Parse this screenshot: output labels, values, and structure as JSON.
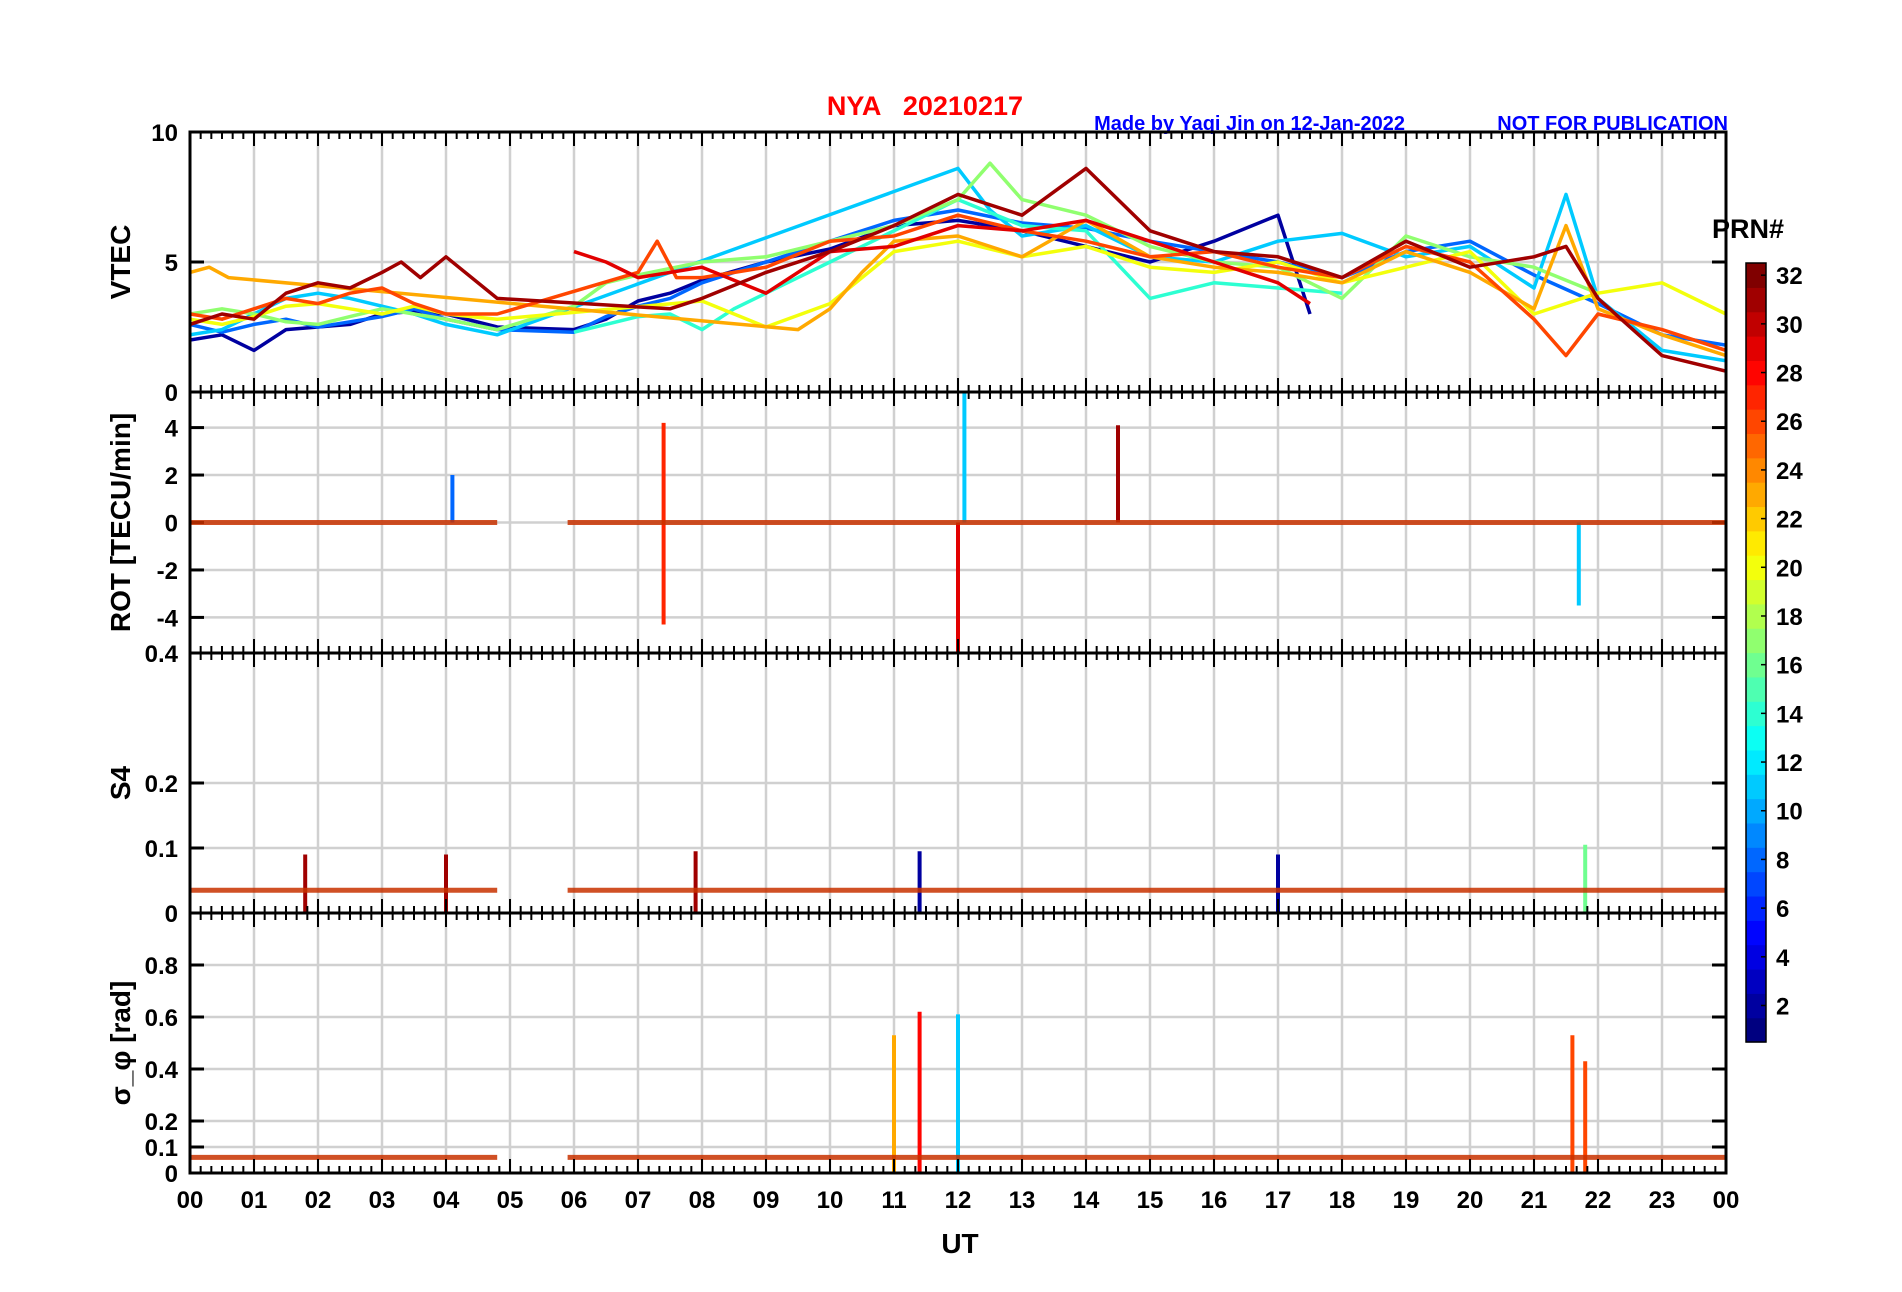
{
  "chart_data": {
    "type": "line",
    "title": "NYA   20210217",
    "note_author": "Made by Yaqi Jin on 12-Jan-2022",
    "note_status": "NOT FOR PUBLICATION",
    "xlabel": "UT",
    "x_ticks": [
      "00",
      "01",
      "02",
      "03",
      "04",
      "05",
      "06",
      "07",
      "08",
      "09",
      "10",
      "11",
      "12",
      "13",
      "14",
      "15",
      "16",
      "17",
      "18",
      "19",
      "20",
      "21",
      "22",
      "23",
      "00"
    ],
    "xlim": [
      0,
      24
    ],
    "grid": true,
    "colorbar": {
      "title": "PRN#",
      "range": [
        1,
        32
      ],
      "ticks": [
        "2",
        "4",
        "6",
        "8",
        "10",
        "12",
        "14",
        "16",
        "18",
        "20",
        "22",
        "24",
        "26",
        "28",
        "30",
        "32"
      ],
      "colormap": "jet"
    },
    "panels": [
      {
        "ylabel": "VTEC",
        "ylim": [
          0,
          10
        ],
        "y_ticks": [
          "0",
          "5",
          "10"
        ],
        "series": [
          {
            "prn": 2,
            "x": [
              0,
              0.5,
              1,
              1.5,
              2,
              2.5,
              3,
              3.5,
              4,
              4.8,
              6,
              6.5,
              7,
              7.5,
              8,
              9,
              10,
              11,
              12,
              13,
              14,
              15,
              16,
              17,
              17.5
            ],
            "values": [
              2.0,
              2.2,
              1.6,
              2.4,
              2.5,
              2.6,
              3.0,
              3.1,
              3.0,
              2.5,
              2.4,
              2.8,
              3.5,
              3.8,
              4.3,
              5.0,
              5.5,
              6.4,
              6.6,
              6.2,
              5.6,
              5.0,
              5.8,
              6.8,
              3.0
            ]
          },
          {
            "prn": 8,
            "x": [
              0,
              0.5,
              1,
              1.5,
              2,
              2.5,
              3,
              3.5,
              4,
              4.8,
              6,
              6.5,
              7,
              7.5,
              8,
              9,
              10,
              11,
              12,
              13,
              14,
              15,
              16,
              17,
              18,
              19,
              20,
              21,
              22,
              23,
              24
            ],
            "values": [
              2.6,
              2.3,
              2.6,
              2.8,
              2.5,
              2.7,
              2.9,
              3.2,
              2.8,
              2.4,
              2.3,
              2.9,
              3.3,
              3.6,
              4.2,
              5.0,
              5.8,
              6.6,
              7.0,
              6.5,
              6.3,
              5.8,
              5.4,
              5.0,
              4.4,
              5.4,
              5.8,
              4.5,
              3.4,
              2.2,
              1.8
            ]
          },
          {
            "prn": 11,
            "x": [
              0,
              0.5,
              1,
              1.5,
              2,
              2.5,
              3,
              3.5,
              4,
              4.8,
              12,
              12.5,
              13,
              14,
              15,
              16,
              17,
              18,
              19,
              20,
              21,
              21.5,
              22,
              23,
              24
            ],
            "values": [
              2.2,
              2.4,
              3.0,
              3.6,
              3.8,
              3.6,
              3.3,
              3.0,
              2.6,
              2.2,
              8.6,
              7.0,
              6.0,
              6.4,
              5.2,
              5.0,
              5.8,
              6.1,
              5.2,
              5.6,
              4.0,
              7.6,
              3.6,
              1.6,
              1.2
            ]
          },
          {
            "prn": 14,
            "x": [
              6,
              6.5,
              7,
              7.5,
              8,
              8.5,
              9,
              9.5,
              10,
              10.5,
              11,
              12,
              13,
              14,
              15,
              16,
              17,
              18
            ],
            "values": [
              2.3,
              2.6,
              2.9,
              3.0,
              2.4,
              3.2,
              3.8,
              4.4,
              5.0,
              5.6,
              6.2,
              7.4,
              6.4,
              6.2,
              3.6,
              4.2,
              4.0,
              3.8
            ]
          },
          {
            "prn": 17,
            "x": [
              0,
              0.5,
              1,
              1.5,
              2,
              2.5,
              3,
              3.5,
              4,
              4.8,
              6,
              6.5,
              7,
              8,
              9,
              10,
              11,
              12,
              12.5,
              13,
              14,
              15,
              16,
              17,
              18,
              19,
              20,
              21,
              22
            ],
            "values": [
              3.0,
              3.2,
              3.0,
              2.7,
              2.6,
              2.9,
              3.2,
              3.0,
              2.8,
              2.4,
              3.3,
              4.2,
              4.5,
              5.0,
              5.2,
              5.8,
              6.4,
              7.4,
              8.8,
              7.4,
              6.8,
              5.6,
              5.0,
              4.8,
              3.6,
              6.0,
              5.2,
              4.8,
              3.8
            ]
          },
          {
            "prn": 20,
            "x": [
              0,
              0.5,
              1,
              1.5,
              2,
              2.5,
              3,
              3.5,
              4,
              4.8,
              8,
              9,
              10,
              11,
              12,
              13,
              14,
              15,
              16,
              17,
              18,
              19,
              20,
              21,
              22,
              23,
              24
            ],
            "values": [
              2.8,
              2.6,
              2.9,
              3.3,
              3.4,
              3.2,
              3.0,
              3.3,
              3.0,
              2.8,
              3.5,
              2.5,
              3.4,
              5.4,
              5.8,
              5.2,
              5.6,
              4.8,
              4.6,
              5.0,
              4.2,
              4.8,
              5.4,
              3.0,
              3.8,
              4.2,
              3.0
            ]
          },
          {
            "prn": 23,
            "x": [
              0,
              0.3,
              0.6,
              9.5,
              10,
              10.5,
              11,
              12,
              13,
              14,
              15,
              16,
              17,
              18,
              19,
              20,
              21,
              21.5,
              22,
              23,
              24
            ],
            "values": [
              4.6,
              4.8,
              4.4,
              2.4,
              3.2,
              4.6,
              5.8,
              6.0,
              5.2,
              6.6,
              5.2,
              4.8,
              4.6,
              4.2,
              5.4,
              4.6,
              3.2,
              6.4,
              3.2,
              2.2,
              1.4
            ]
          },
          {
            "prn": 26,
            "x": [
              0,
              0.5,
              1,
              1.5,
              2,
              2.5,
              3,
              3.5,
              4,
              4.8,
              7,
              7.3,
              7.6,
              8,
              9,
              10,
              11,
              12,
              13,
              14,
              15,
              16,
              17,
              18,
              19,
              20,
              21,
              21.5,
              22,
              23,
              24
            ],
            "values": [
              3.0,
              2.8,
              3.2,
              3.6,
              3.4,
              3.8,
              4.0,
              3.4,
              3.0,
              3.0,
              4.6,
              5.8,
              4.4,
              4.4,
              4.8,
              5.8,
              6.0,
              6.8,
              6.2,
              5.8,
              5.2,
              5.4,
              4.8,
              4.4,
              5.6,
              5.0,
              2.8,
              1.4,
              3.0,
              2.4,
              1.6
            ]
          },
          {
            "prn": 29,
            "x": [
              6,
              6.5,
              7,
              8,
              9,
              10,
              11,
              12,
              13,
              14,
              15,
              16,
              17,
              17.5
            ],
            "values": [
              5.4,
              5.0,
              4.4,
              4.8,
              3.8,
              5.4,
              5.6,
              6.4,
              6.2,
              6.6,
              5.8,
              5.0,
              4.2,
              3.4
            ]
          },
          {
            "prn": 31,
            "x": [
              0,
              0.5,
              1,
              1.5,
              2,
              2.5,
              3,
              3.3,
              3.6,
              4,
              4.8,
              7.5,
              8,
              9,
              10,
              11,
              12,
              13,
              14,
              15,
              16,
              17,
              18,
              19,
              20,
              21,
              21.5,
              22,
              23,
              24
            ],
            "values": [
              2.6,
              3.0,
              2.8,
              3.8,
              4.2,
              4.0,
              4.6,
              5.0,
              4.4,
              5.2,
              3.6,
              3.2,
              3.6,
              4.6,
              5.4,
              6.4,
              7.6,
              6.8,
              8.6,
              6.2,
              5.4,
              5.2,
              4.4,
              5.8,
              4.8,
              5.2,
              5.6,
              3.6,
              1.4,
              0.8
            ]
          }
        ]
      },
      {
        "ylabel": "ROT [TECU/min]",
        "ylim": [
          -5.5,
          5.5
        ],
        "y_ticks": [
          "-4",
          "-2",
          "0",
          "2",
          "4"
        ],
        "series": [
          {
            "prn": 11,
            "x": [
              12.1
            ],
            "values": [
              5.5
            ]
          },
          {
            "prn": 27,
            "x": [
              7.4
            ],
            "values": [
              4.2
            ]
          },
          {
            "prn": 27,
            "x": [
              7.4
            ],
            "values": [
              -4.3
            ]
          },
          {
            "prn": 29,
            "x": [
              12.0
            ],
            "values": [
              -5.5
            ]
          },
          {
            "prn": 31,
            "x": [
              14.5
            ],
            "values": [
              4.1
            ]
          },
          {
            "prn": 11,
            "x": [
              21.7
            ],
            "values": [
              -3.5
            ]
          },
          {
            "prn": 8,
            "x": [
              4.1
            ],
            "values": [
              2.0
            ]
          }
        ]
      },
      {
        "ylabel": "S4",
        "ylim": [
          0,
          0.4
        ],
        "y_ticks": [
          "0",
          "0.1",
          "0.2",
          "0.4"
        ],
        "series": [
          {
            "prn": 31,
            "x": [
              1.8,
              4.0,
              7.9
            ],
            "values": [
              0.09,
              0.09,
              0.095
            ]
          },
          {
            "prn": 2,
            "x": [
              11.4,
              17.0
            ],
            "values": [
              0.095,
              0.09
            ]
          },
          {
            "prn": 16,
            "x": [
              21.8
            ],
            "values": [
              0.105
            ]
          }
        ]
      },
      {
        "ylabel": "σ_φ [rad]",
        "ylim": [
          0,
          1.0
        ],
        "y_ticks": [
          "0",
          "0.1",
          "0.2",
          "0.4",
          "0.6",
          "0.8"
        ],
        "series": [
          {
            "prn": 28,
            "x": [
              11.4
            ],
            "values": [
              0.62
            ]
          },
          {
            "prn": 11,
            "x": [
              12.0
            ],
            "values": [
              0.61
            ]
          },
          {
            "prn": 26,
            "x": [
              21.6,
              21.8
            ],
            "values": [
              0.53,
              0.43
            ]
          },
          {
            "prn": 23,
            "x": [
              11.0
            ],
            "values": [
              0.53
            ]
          }
        ]
      }
    ]
  }
}
